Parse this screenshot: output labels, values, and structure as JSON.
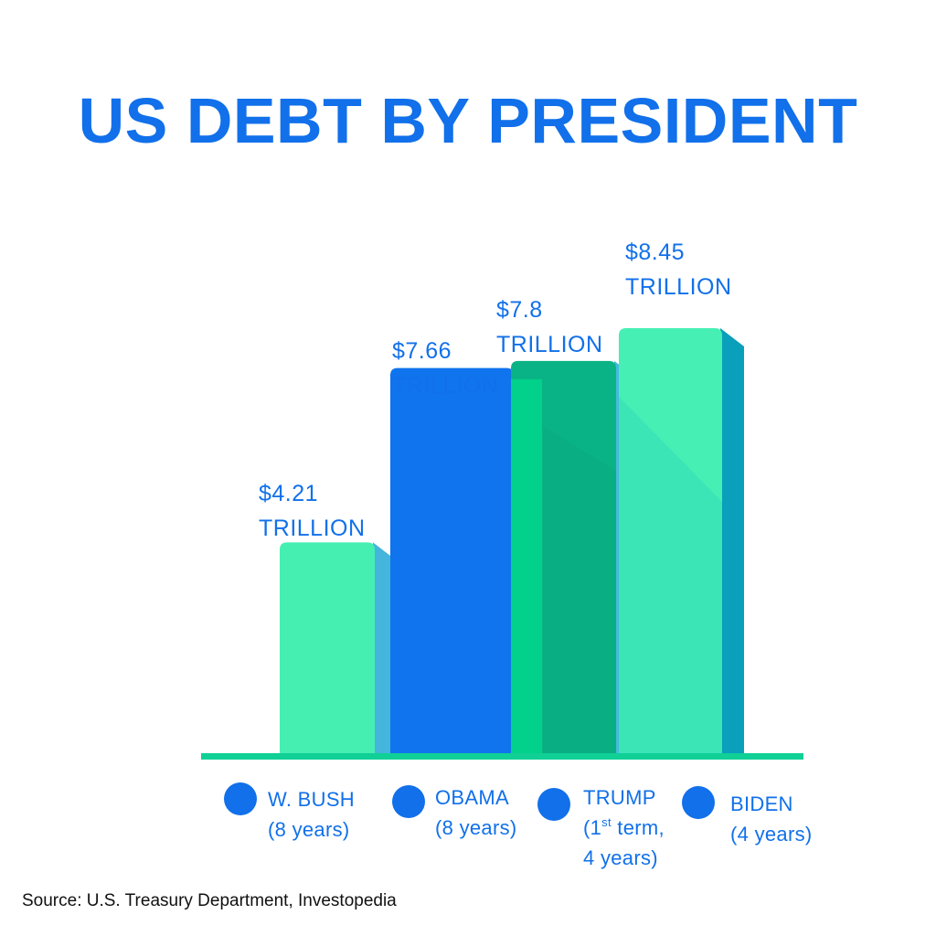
{
  "chart_data": {
    "type": "bar",
    "title": "US DEBT BY PRESIDENT",
    "categories": [
      "W. BUSH (8 years)",
      "OBAMA (8 years)",
      "TRUMP (1st term, 4 years)",
      "BIDEN (4 years)"
    ],
    "values": [
      4.21,
      7.66,
      7.8,
      8.45
    ],
    "unit": "TRILLION",
    "value_labels": [
      {
        "amount": "$4.21",
        "unit": "TRILLION"
      },
      {
        "amount": "$7.66",
        "unit": "TRILLION"
      },
      {
        "amount": "$7.8",
        "unit": "TRILLION"
      },
      {
        "amount": "$8.45",
        "unit": "TRILLION"
      }
    ],
    "legend": [
      {
        "line1": "W. BUSH",
        "line2": "(8 years)"
      },
      {
        "line1": "OBAMA",
        "line2": "(8 years)"
      },
      {
        "line1": "TRUMP",
        "line2_prefix": "(1",
        "line2_sup": "st",
        "line2_suffix": " term,",
        "line3": "4 years)"
      },
      {
        "line1": "BIDEN",
        "line2": "(4 years)"
      }
    ],
    "colors": {
      "title": "#1170ea",
      "label": "#1170ea",
      "bar_front": [
        "#45efb2",
        "#0f74ee",
        "#0ab385",
        "#46efb4"
      ],
      "bar_side": [
        "#44b5dd",
        "#00d48b",
        "#46b9dd",
        "#0a9fbb"
      ],
      "baseline": "#10d096",
      "legend_dot": "#1170ea"
    },
    "ylim": [
      0,
      8.45
    ],
    "grid": false,
    "legend_position": "bottom"
  },
  "source": "Source: U.S. Treasury Department, Investopedia"
}
